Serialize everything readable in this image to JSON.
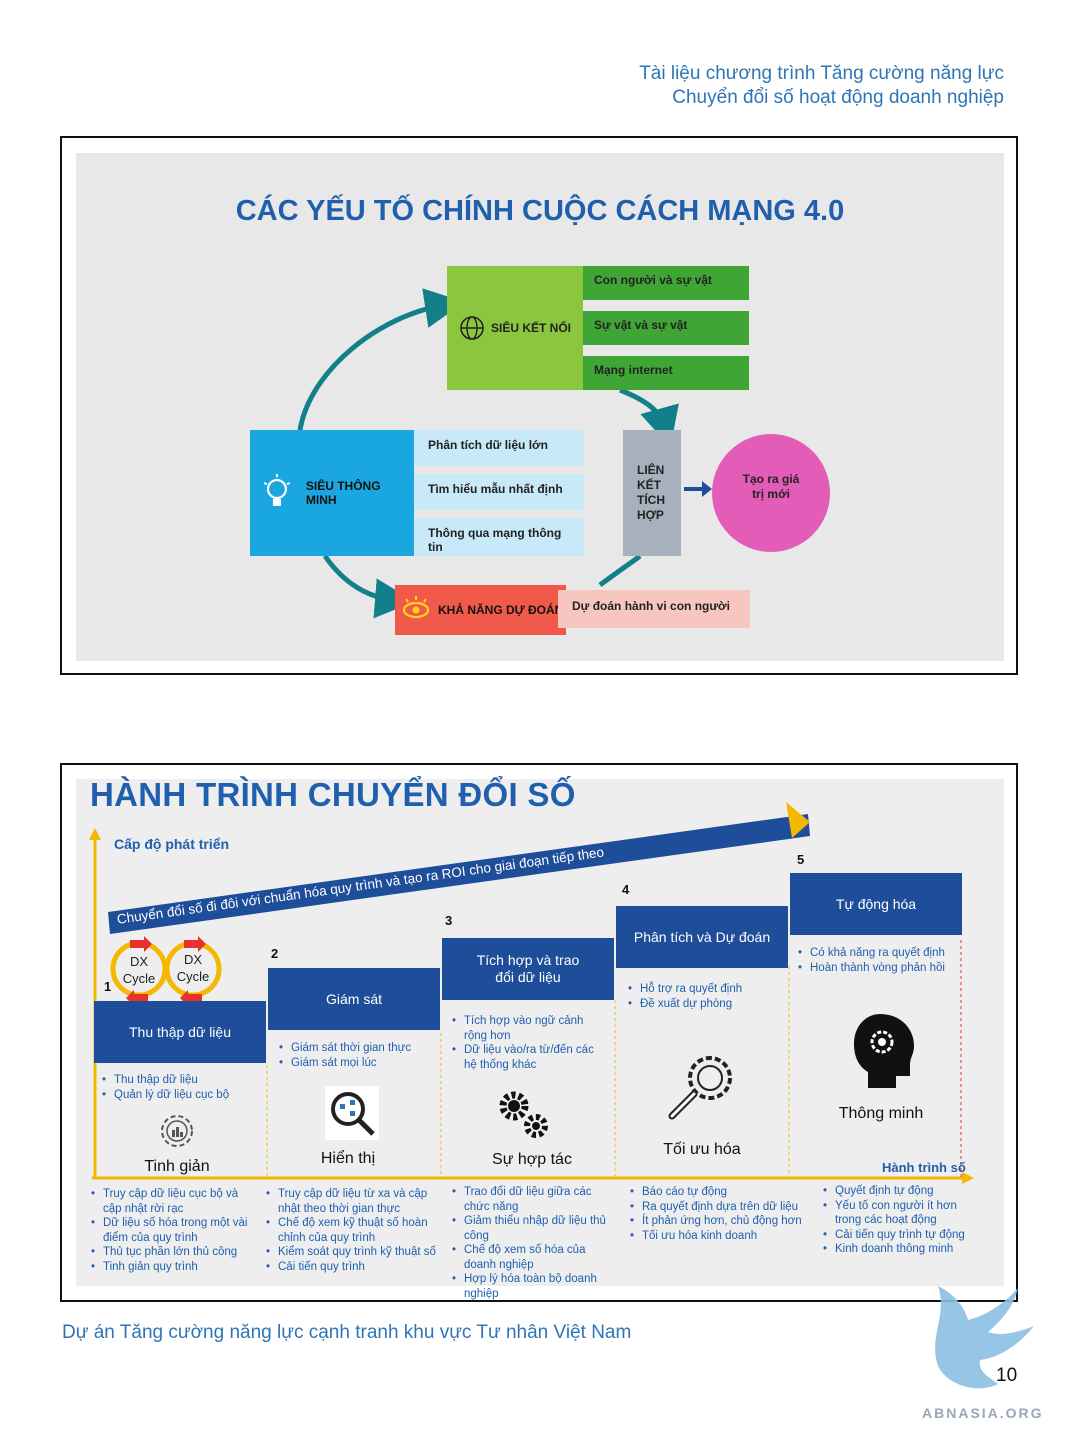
{
  "header": {
    "line1": "Tài liệu chương trình Tăng cường năng lực",
    "line2": "Chuyển đổi số hoạt động doanh nghiệp"
  },
  "figure1": {
    "title": "CÁC YẾU TỐ CHÍNH CUỘC CÁCH MẠNG 4.0",
    "sieu_ket_noi": {
      "label": "SIÊU KẾT NỐI",
      "items": [
        "Con người và sự vật",
        "Sự vật và sự vật",
        "Mạng internet"
      ]
    },
    "sieu_thong_minh": {
      "label": "SIÊU THÔNG MINH",
      "items": [
        "Phân tích dữ liệu lớn",
        "Tìm hiểu mẫu nhất định",
        "Thông qua mạng thông tin"
      ]
    },
    "kha_nang_du_doan": {
      "label": "KHẢ NĂNG DỰ ĐOÁN",
      "item": "Dự đoán hành vi con người"
    },
    "lien_ket": [
      "LIÊN",
      "KẾT",
      "TÍCH",
      "HỢP"
    ],
    "value": [
      "Tạo ra giá",
      "trị mới"
    ],
    "colors": {
      "green": "#8cc63f",
      "dark_green": "#3fa535",
      "cyan": "#1aa7e0",
      "light_blue": "#c8e9f7",
      "red": "#f15a4a",
      "pink_light": "#f8c6c0",
      "grey": "#a7b0bd",
      "magenta": "#e25cb8",
      "teal": "#137f8a"
    }
  },
  "figure2": {
    "title": "HÀNH TRÌNH CHUYỂN ĐỔI SỐ",
    "y_label": "Cấp độ phát triển",
    "x_label": "Hành trình số",
    "banner": "Chuyển đổi số đi đôi với chuẩn hóa quy trình và tạo ra ROI cho giai đoạn tiếp theo",
    "dx_cycle": [
      "DX",
      "Cycle"
    ],
    "steps": [
      {
        "num": "1",
        "title": "Thu thập dữ liệu",
        "bullets": [
          "Thu thập dữ liệu",
          "Quản lý dữ liệu cục bộ"
        ],
        "caption": "Tinh giản",
        "bottom": [
          "Truy cập dữ liệu cục bộ và cập nhật rời rạc",
          "Dữ liệu số hóa trong một vài điểm của quy trình",
          "Thủ tục phần lớn thủ công",
          "Tinh giản quy trình"
        ]
      },
      {
        "num": "2",
        "title": "Giám sát",
        "bullets": [
          "Giám sát thời gian thực",
          "Giám sát mọi lúc"
        ],
        "caption": "Hiển thị",
        "bottom": [
          "Truy cập dữ liệu từ xa và cập nhật theo thời gian thực",
          "Chế độ xem kỹ thuật số hoàn chỉnh của quy trình",
          "Kiểm soát quy trình kỹ thuật số",
          "Cải tiến quy trình"
        ]
      },
      {
        "num": "3",
        "title": "Tích hợp và trao đổi dữ liệu",
        "bullets": [
          "Tích hợp vào ngữ cảnh rộng hơn",
          "Dữ liệu vào/ra từ/đến các hệ thống khác"
        ],
        "caption": "Sự hợp tác",
        "bottom": [
          "Trao đổi dữ liệu giữa các chức năng",
          "Giảm thiểu nhập dữ liệu thủ công",
          "Chế độ xem số hóa của doanh nghiệp",
          "Hợp lý hóa toàn bộ doanh nghiệp"
        ]
      },
      {
        "num": "4",
        "title": "Phân tích và Dự đoán",
        "bullets": [
          "Hỗ trợ ra quyết định",
          "Đề xuất dự phòng"
        ],
        "caption": "Tối ưu hóa",
        "bottom": [
          "Báo cáo tự động",
          "Ra quyết định dựa trên dữ liệu",
          "Ít phản ứng hơn, chủ động hơn",
          "Tối ưu hóa kinh doanh"
        ]
      },
      {
        "num": "5",
        "title": "Tự động hóa",
        "bullets": [
          "Có khả năng ra quyết định",
          "Hoàn thành vòng phản hồi"
        ],
        "caption": "Thông minh",
        "bottom": [
          "Quyết định tự động",
          "Yếu tố con người ít hơn trong các hoạt động",
          "Cải tiến quy trình tự động",
          "Kinh doanh thông minh"
        ]
      }
    ],
    "colors": {
      "navy": "#1e4e9a",
      "axis": "#f5b800",
      "blue_text": "#1f5fae",
      "red_arrow": "#e5322d"
    }
  },
  "footer": "Dự án Tăng cường năng lực cạnh tranh khu vực Tư nhân Việt Nam",
  "page_number": "10",
  "watermark": "ABNASIA.ORG"
}
